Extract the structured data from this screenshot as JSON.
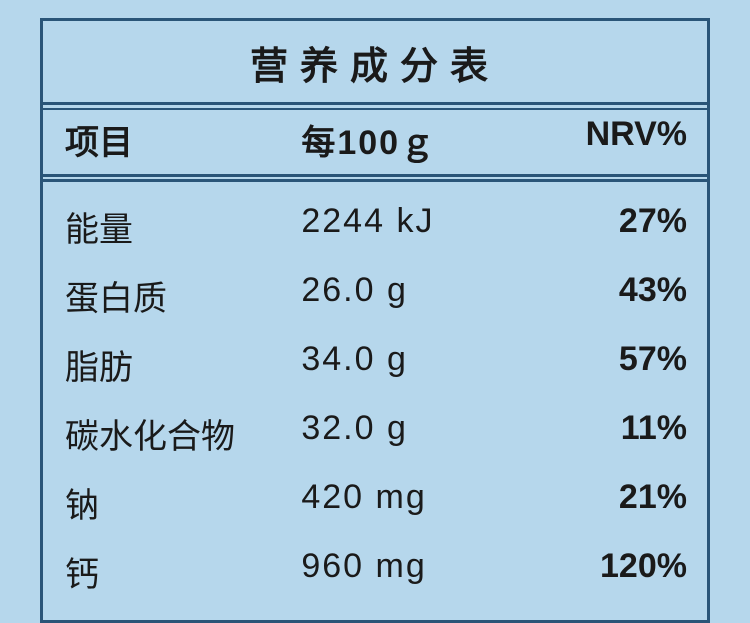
{
  "table": {
    "title": "营养成分表",
    "headers": {
      "item": "项目",
      "amount": "每100ｇ",
      "nrv": "NRV%"
    },
    "rows": [
      {
        "item": "能量",
        "amount": "2244 kJ",
        "nrv": "27%"
      },
      {
        "item": "蛋白质",
        "amount": "26.0 g",
        "nrv": "43%"
      },
      {
        "item": "脂肪",
        "amount": "34.0 g",
        "nrv": "57%"
      },
      {
        "item": "碳水化合物",
        "amount": "32.0 g",
        "nrv": "11%"
      },
      {
        "item": "钠",
        "amount": "420 mg",
        "nrv": "21%"
      },
      {
        "item": "钙",
        "amount": "960 mg",
        "nrv": "120%"
      }
    ],
    "colors": {
      "background": "#b6d7ec",
      "border": "#2a5578",
      "text": "#1a1a1a"
    },
    "font_sizes": {
      "title": 38,
      "header": 34,
      "body": 34
    }
  }
}
